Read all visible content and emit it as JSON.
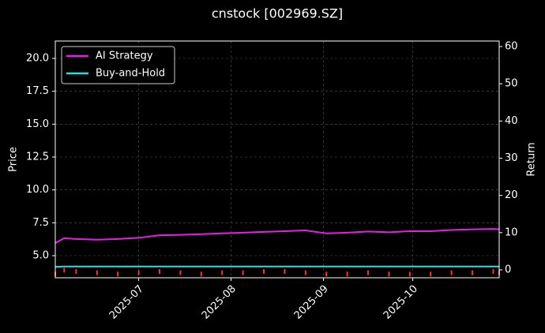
{
  "chart_data": {
    "type": "line",
    "title": "cnstock [002969.SZ]",
    "ylabel": "Price",
    "y2label": "Return",
    "x": [
      "2025-06-03",
      "2025-06-06",
      "2025-06-10",
      "2025-06-17",
      "2025-06-24",
      "2025-07-01",
      "2025-07-08",
      "2025-07-15",
      "2025-07-22",
      "2025-07-29",
      "2025-08-05",
      "2025-08-12",
      "2025-08-19",
      "2025-08-26",
      "2025-09-02",
      "2025-09-09",
      "2025-09-16",
      "2025-09-23",
      "2025-09-30",
      "2025-10-07",
      "2025-10-14",
      "2025-10-21",
      "2025-10-28",
      "2025-10-30"
    ],
    "xlim": [
      "2025-06-03",
      "2025-10-30"
    ],
    "xticks": [
      {
        "value": "2025-07-01",
        "label": "2025-07"
      },
      {
        "value": "2025-08-01",
        "label": "2025-08"
      },
      {
        "value": "2025-09-01",
        "label": "2025-09"
      },
      {
        "value": "2025-10-01",
        "label": "2025-10"
      }
    ],
    "ylim": [
      3.32,
      21.32
    ],
    "yticks": [
      {
        "value": 5,
        "label": "5.0"
      },
      {
        "value": 7.5,
        "label": "7.5"
      },
      {
        "value": 10,
        "label": "10.0"
      },
      {
        "value": 12.5,
        "label": "12.5"
      },
      {
        "value": 15,
        "label": "15.0"
      },
      {
        "value": 17.5,
        "label": "17.5"
      },
      {
        "value": 20,
        "label": "20.0"
      }
    ],
    "y2lim": [
      -2.12,
      61.48
    ],
    "y2ticks": [
      0,
      10,
      20,
      30,
      40,
      50,
      60
    ],
    "grid": true,
    "legend": "upper left",
    "price": {
      "color": "#ff3030",
      "values": [
        3.6,
        3.9,
        3.8,
        3.7,
        3.6,
        3.7,
        3.8,
        3.7,
        3.6,
        3.7,
        3.7,
        3.8,
        3.8,
        3.7,
        3.6,
        3.6,
        3.7,
        3.6,
        3.6,
        3.6,
        3.7,
        3.7,
        3.8,
        3.7
      ]
    },
    "series": [
      {
        "name": "AI Strategy",
        "color": "#e81ee8",
        "axis": "y2",
        "values": [
          7.2,
          8.5,
          8.3,
          8.1,
          8.3,
          8.6,
          9.3,
          9.4,
          9.6,
          9.8,
          10.0,
          10.2,
          10.4,
          10.6,
          9.8,
          10.0,
          10.3,
          10.1,
          10.4,
          10.4,
          10.7,
          10.9,
          11.0,
          10.9
        ]
      },
      {
        "name": "Buy-and-Hold",
        "color": "#22e0e0",
        "axis": "y2",
        "values": [
          0.8,
          0.9,
          0.9,
          0.9,
          0.9,
          0.9,
          0.9,
          0.9,
          0.9,
          0.9,
          0.9,
          0.9,
          0.9,
          0.9,
          0.9,
          0.9,
          0.9,
          0.9,
          0.9,
          0.9,
          0.9,
          0.9,
          0.9,
          0.9
        ]
      }
    ]
  }
}
